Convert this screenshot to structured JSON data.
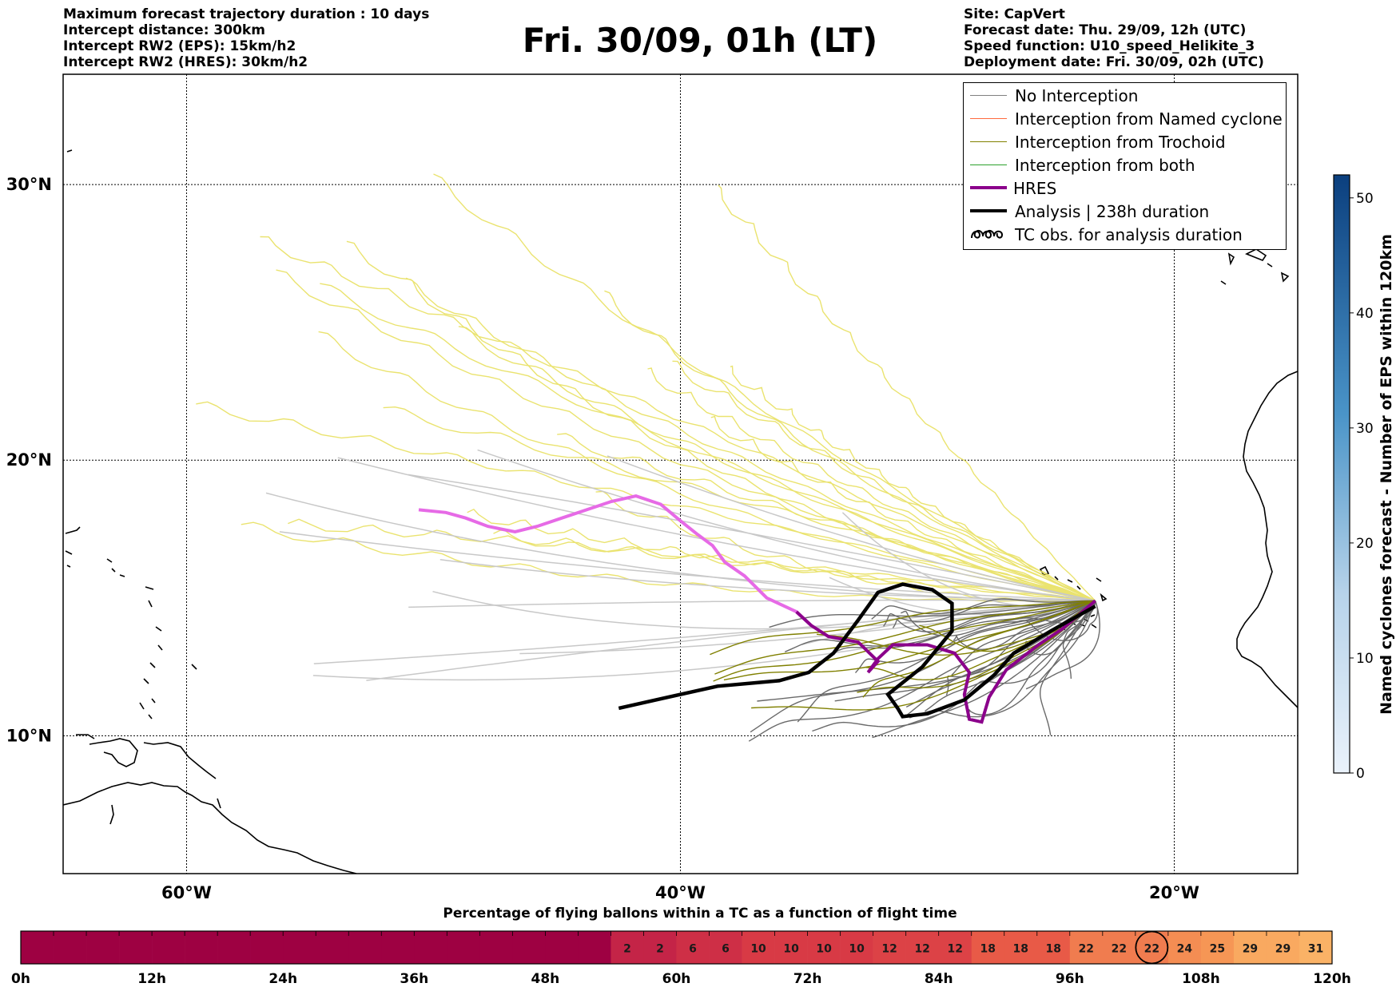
{
  "header_left": [
    "Maximum forecast trajectory duration : 10 days",
    "Intercept distance: 300km",
    "Intercept RW2 (EPS):  15km/h2",
    "Intercept RW2 (HRES): 30km/h2"
  ],
  "title": "Fri. 30/09, 01h (LT)",
  "header_right": [
    "Site: CapVert",
    "Forecast date: Thu. 29/09, 12h (UTC)",
    "Speed function: U10_speed_Helikite_3",
    "Deployment date: Fri. 30/09, 02h (UTC)"
  ],
  "legend": [
    {
      "label": "No Interception",
      "color": "#808080",
      "style": "thin"
    },
    {
      "label": "Interception from Named cyclone",
      "color": "#ff6a3d",
      "style": "thin"
    },
    {
      "label": "Interception from Trochoid",
      "color": "#808000",
      "style": "thin"
    },
    {
      "label": "Interception from both",
      "color": "#2ca02c",
      "style": "thin"
    },
    {
      "label": "HRES",
      "color": "#8b008b",
      "style": "thick"
    },
    {
      "label": "Analysis | 238h duration",
      "color": "#000000",
      "style": "thick"
    },
    {
      "label": "TC obs. for analysis duration",
      "color": "#000000",
      "style": "loops"
    }
  ],
  "colorbar": {
    "label": "Named cyclones forecast - Number of EPS within 120km",
    "ticks": [
      0,
      10,
      20,
      30,
      40,
      50
    ],
    "min": 0,
    "max": 52,
    "colors": [
      "#eaf2fb",
      "#0b3f7e"
    ]
  },
  "bottom_bar": {
    "title": "Percentage of flying ballons within a TC as a function of flight time",
    "time_labels": [
      "0h",
      "12h",
      "24h",
      "36h",
      "48h",
      "60h",
      "72h",
      "84h",
      "96h",
      "108h",
      "120h"
    ],
    "values": [
      0,
      0,
      0,
      0,
      0,
      0,
      0,
      0,
      0,
      0,
      0,
      0,
      0,
      0,
      0,
      0,
      0,
      0,
      2,
      2,
      6,
      6,
      10,
      10,
      10,
      10,
      12,
      12,
      12,
      18,
      18,
      18,
      22,
      22,
      22,
      24,
      25,
      29,
      29,
      31
    ],
    "circled_index": 34
  },
  "chart_data": {
    "type": "map",
    "title": "Fri. 30/09, 01h (LT)",
    "lon_range": [
      -65,
      -15
    ],
    "lat_range": [
      5,
      34
    ],
    "lon_ticks": [
      -60,
      -40,
      -20
    ],
    "lon_tick_labels": [
      "60°W",
      "40°W",
      "20°W"
    ],
    "lat_ticks": [
      10,
      20,
      30
    ],
    "lat_tick_labels": [
      "10°N",
      "20°N",
      "30°N"
    ],
    "grid": true,
    "legend_position": "top-right",
    "deployment_site_lon_lat": [
      -23.2,
      14.9
    ],
    "hres_track_lon_lat": [
      [
        -23.2,
        14.9
      ],
      [
        -24.5,
        13.9
      ],
      [
        -25.5,
        13.3
      ],
      [
        -26.8,
        12.4
      ],
      [
        -27.5,
        11.4
      ],
      [
        -27.8,
        10.5
      ],
      [
        -28.3,
        10.6
      ],
      [
        -28.5,
        11.5
      ],
      [
        -28.3,
        12.3
      ],
      [
        -28.9,
        13.0
      ],
      [
        -30.0,
        13.3
      ],
      [
        -31.4,
        13.3
      ],
      [
        -32.0,
        12.8
      ],
      [
        -32.4,
        12.3
      ],
      [
        -32.0,
        12.7
      ],
      [
        -32.8,
        13.4
      ],
      [
        -34.0,
        13.6
      ],
      [
        -34.7,
        14.0
      ],
      [
        -35.3,
        14.5
      ],
      [
        -36.5,
        15.0
      ],
      [
        -37.4,
        15.8
      ],
      [
        -38.2,
        16.3
      ],
      [
        -38.7,
        16.9
      ],
      [
        -39.3,
        17.3
      ],
      [
        -40.0,
        17.8
      ],
      [
        -40.8,
        18.4
      ],
      [
        -41.8,
        18.7
      ],
      [
        -42.8,
        18.5
      ],
      [
        -43.8,
        18.2
      ],
      [
        -44.8,
        17.9
      ],
      [
        -45.8,
        17.6
      ],
      [
        -46.7,
        17.4
      ],
      [
        -47.8,
        17.6
      ],
      [
        -48.7,
        17.9
      ],
      [
        -49.5,
        18.1
      ],
      [
        -50.6,
        18.2
      ]
    ],
    "analysis_track_lon_lat": [
      [
        -23.2,
        14.7
      ],
      [
        -25.0,
        13.8
      ],
      [
        -26.5,
        13.0
      ],
      [
        -27.3,
        12.2
      ],
      [
        -28.5,
        11.3
      ],
      [
        -30.0,
        10.8
      ],
      [
        -31.0,
        10.7
      ],
      [
        -31.2,
        11.0
      ],
      [
        -31.6,
        11.5
      ],
      [
        -30.2,
        12.5
      ],
      [
        -29.0,
        13.8
      ],
      [
        -29.0,
        14.8
      ],
      [
        -29.8,
        15.3
      ],
      [
        -31.0,
        15.5
      ],
      [
        -32.0,
        15.2
      ],
      [
        -32.8,
        14.2
      ],
      [
        -33.8,
        13.0
      ],
      [
        -34.8,
        12.3
      ],
      [
        -36.0,
        12.0
      ],
      [
        -38.5,
        11.8
      ],
      [
        -40.5,
        11.4
      ],
      [
        -42.5,
        11.0
      ]
    ]
  }
}
